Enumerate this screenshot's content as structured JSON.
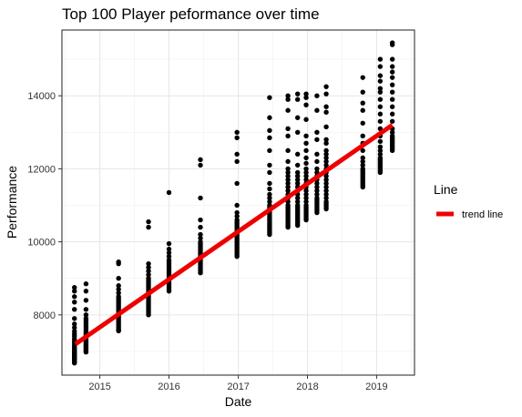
{
  "chart_data": {
    "type": "scatter",
    "title": "Top 100 Player peformance over time",
    "xlabel": "Date",
    "ylabel": "Performance",
    "xlim": [
      "2014-06-15",
      "2019-07-20"
    ],
    "ylim": [
      6350,
      15800
    ],
    "x_ticks": [
      {
        "date": "2015-01-01",
        "label": "2015"
      },
      {
        "date": "2016-01-01",
        "label": "2016"
      },
      {
        "date": "2017-01-01",
        "label": "2017"
      },
      {
        "date": "2018-01-01",
        "label": "2018"
      },
      {
        "date": "2019-01-01",
        "label": "2019"
      }
    ],
    "y_ticks": [
      {
        "value": 8000,
        "label": "8000"
      },
      {
        "value": 10000,
        "label": "10000"
      },
      {
        "value": 12000,
        "label": "12000"
      },
      {
        "value": 14000,
        "label": "14000"
      }
    ],
    "grid": true,
    "point_color": "#000000",
    "trend_color": "#ee0000",
    "legend": {
      "title": "Line",
      "placement": "right",
      "entries": [
        {
          "label": "trend line",
          "color": "#ee0000"
        }
      ]
    },
    "trend_line": {
      "name": "trend line",
      "start": {
        "date": "2014-08-25",
        "value": 7200
      },
      "end": {
        "date": "2019-03-25",
        "value": 13200
      }
    },
    "groups": [
      {
        "date": "2014-08-20",
        "values": [
          8750,
          8650,
          8500,
          8350,
          8150,
          7900,
          7750,
          7650,
          7550,
          7480,
          7420,
          7350,
          7300,
          7250,
          7200,
          7160,
          7120,
          7080,
          7050,
          7020,
          7000,
          6980,
          6960,
          6940,
          6920,
          6900,
          6880,
          6860,
          6840,
          6820,
          6800,
          6780,
          6750,
          6720,
          6700,
          6680
        ]
      },
      {
        "date": "2014-10-20",
        "values": [
          8850,
          8650,
          8400,
          8150,
          8000,
          7900,
          7850,
          7800,
          7750,
          7700,
          7650,
          7600,
          7560,
          7520,
          7480,
          7450,
          7420,
          7390,
          7360,
          7330,
          7300,
          7270,
          7240,
          7210,
          7180,
          7150,
          7120,
          7090,
          7060,
          7030,
          7000,
          6980
        ]
      },
      {
        "date": "2015-04-10",
        "values": [
          9450,
          9400,
          9000,
          8800,
          8700,
          8600,
          8500,
          8450,
          8400,
          8350,
          8300,
          8250,
          8200,
          8150,
          8100,
          8050,
          8000,
          7950,
          7900,
          7850,
          7800,
          7750,
          7700,
          7650,
          7600,
          7580,
          7560
        ]
      },
      {
        "date": "2015-09-15",
        "values": [
          10550,
          10400,
          9400,
          9300,
          9200,
          9100,
          9000,
          8950,
          8900,
          8850,
          8800,
          8750,
          8700,
          8650,
          8600,
          8550,
          8500,
          8450,
          8400,
          8350,
          8300,
          8250,
          8200,
          8150,
          8100,
          8050,
          8000
        ]
      },
      {
        "date": "2016-01-01",
        "values": [
          11350,
          9950,
          9800,
          9700,
          9600,
          9500,
          9450,
          9400,
          9350,
          9300,
          9250,
          9200,
          9150,
          9100,
          9050,
          9000,
          8950,
          8900,
          8850,
          8800,
          8750,
          8700,
          8650
        ]
      },
      {
        "date": "2016-06-15",
        "values": [
          12250,
          12100,
          11200,
          10600,
          10400,
          10200,
          10100,
          10000,
          9950,
          9900,
          9850,
          9800,
          9750,
          9700,
          9650,
          9600,
          9550,
          9500,
          9450,
          9400,
          9350,
          9300,
          9250,
          9200,
          9150
        ]
      },
      {
        "date": "2016-12-25",
        "values": [
          13000,
          12850,
          12400,
          12200,
          11600,
          11000,
          10800,
          10700,
          10600,
          10550,
          10500,
          10450,
          10400,
          10350,
          10300,
          10250,
          10200,
          10150,
          10100,
          10050,
          10000,
          9950,
          9900,
          9850,
          9800,
          9750,
          9700,
          9650,
          9600
        ]
      },
      {
        "date": "2017-06-15",
        "values": [
          13950,
          13400,
          13050,
          12850,
          12500,
          12100,
          11900,
          11600,
          11450,
          11300,
          11200,
          11100,
          11000,
          10950,
          10900,
          10850,
          10800,
          10750,
          10700,
          10650,
          10600,
          10550,
          10500,
          10450,
          10400,
          10350,
          10300,
          10250,
          10200
        ]
      },
      {
        "date": "2017-09-20",
        "values": [
          14000,
          13900,
          13600,
          13100,
          12900,
          12500,
          12200,
          12000,
          11900,
          11800,
          11700,
          11600,
          11500,
          11400,
          11300,
          11200,
          11100,
          11000,
          10950,
          10900,
          10850,
          10800,
          10750,
          10700,
          10650,
          10600,
          10550,
          10500,
          10450,
          10400
        ]
      },
      {
        "date": "2017-11-10",
        "values": [
          14050,
          13900,
          13400,
          13000,
          12400,
          12100,
          11900,
          11800,
          11700,
          11600,
          11500,
          11400,
          11300,
          11200,
          11100,
          11000,
          10950,
          10900,
          10850,
          10800,
          10750,
          10700,
          10650,
          10600,
          10550,
          10500,
          10450
        ]
      },
      {
        "date": "2017-12-25",
        "values": [
          14050,
          13950,
          13750,
          13350,
          12900,
          12700,
          12500,
          12300,
          12150,
          12000,
          11900,
          11800,
          11700,
          11600,
          11500,
          11400,
          11300,
          11200,
          11100,
          11000,
          10950,
          10900,
          10850,
          10800,
          10750,
          10700,
          10650,
          10600
        ]
      },
      {
        "date": "2018-02-20",
        "values": [
          14000,
          13600,
          13000,
          12800,
          12400,
          12200,
          12000,
          11900,
          11800,
          11700,
          11600,
          11500,
          11400,
          11300,
          11200,
          11150,
          11100,
          11050,
          11000,
          10950,
          10900,
          10850,
          10800
        ]
      },
      {
        "date": "2018-04-10",
        "values": [
          14250,
          14050,
          13700,
          13550,
          13150,
          12800,
          12700,
          12500,
          12400,
          12300,
          12200,
          12100,
          12000,
          11900,
          11800,
          11700,
          11600,
          11500,
          11400,
          11300,
          11200,
          11100,
          11050,
          11000,
          10950,
          10900
        ]
      },
      {
        "date": "2018-10-20",
        "values": [
          14500,
          14100,
          13800,
          13600,
          13250,
          12900,
          12700,
          12500,
          12300,
          12200,
          12100,
          12000,
          11950,
          11900,
          11850,
          11800,
          11750,
          11700,
          11650,
          11600,
          11550,
          11500
        ]
      },
      {
        "date": "2019-01-20",
        "values": [
          15000,
          14800,
          14550,
          14400,
          14200,
          14100,
          13900,
          13700,
          13500,
          13300,
          13100,
          12900,
          12750,
          12600,
          12500,
          12400,
          12300,
          12250,
          12200,
          12150,
          12100,
          12050,
          12000,
          11950,
          11900
        ]
      },
      {
        "date": "2019-03-25",
        "values": [
          15450,
          15400,
          15000,
          14800,
          14650,
          14500,
          14300,
          14100,
          13900,
          13700,
          13500,
          13300,
          13100,
          13000,
          12900,
          12850,
          12800,
          12750,
          12700,
          12650,
          12600,
          12550,
          12500
        ]
      }
    ]
  }
}
